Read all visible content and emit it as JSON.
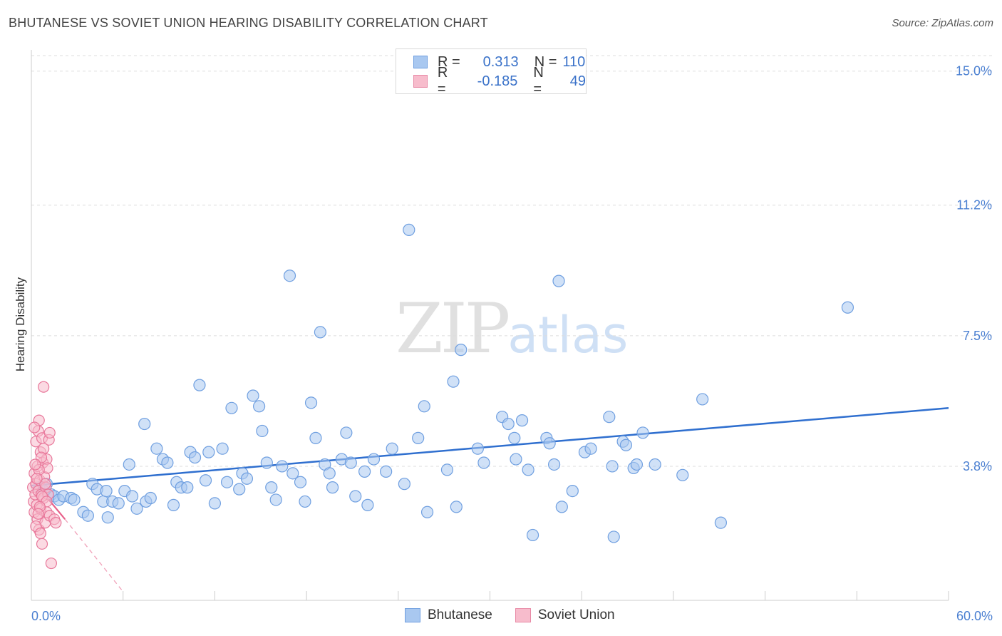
{
  "header": {
    "title": "BHUTANESE VS SOVIET UNION HEARING DISABILITY CORRELATION CHART",
    "source": "Source: ZipAtlas.com"
  },
  "watermark": {
    "zip": "ZIP",
    "atlas": "atlas"
  },
  "legend": {
    "rows": [
      {
        "r_label": "R =",
        "r_value": "0.313",
        "n_label": "N =",
        "n_value": "110",
        "color": "#a9c8f0",
        "border": "#6f9fe0"
      },
      {
        "r_label": "R =",
        "r_value": "-0.185",
        "n_label": "N =",
        "n_value": "49",
        "color": "#f7bccc",
        "border": "#e88aa6"
      }
    ]
  },
  "bottom_legend": [
    {
      "label": "Bhutanese",
      "color": "#a9c8f0",
      "border": "#6f9fe0"
    },
    {
      "label": "Soviet Union",
      "color": "#f7bccc",
      "border": "#e88aa6"
    }
  ],
  "chart_data": {
    "type": "scatter",
    "ylabel": "Hearing Disability",
    "xlim": [
      0,
      60
    ],
    "ylim": [
      0,
      15.6
    ],
    "x_ticks": [
      "0.0%",
      "60.0%"
    ],
    "y_ticks": [
      {
        "value": 3.8,
        "label": "3.8%"
      },
      {
        "value": 7.5,
        "label": "7.5%"
      },
      {
        "value": 11.2,
        "label": "11.2%"
      },
      {
        "value": 15.0,
        "label": "15.0%"
      }
    ],
    "colors": {
      "bhutanese": "#6f9fe0",
      "bhutanese_fill": "#a9c8f0",
      "soviet": "#e8779a",
      "soviet_fill": "#f7bccc",
      "trend_blue": "#2f6fcf",
      "trend_pink": "#e8608a"
    },
    "series": [
      {
        "name": "Bhutanese",
        "points": [
          [
            0.5,
            3.2
          ],
          [
            0.8,
            3.1
          ],
          [
            1.0,
            3.3
          ],
          [
            1.3,
            3.0
          ],
          [
            1.5,
            2.95
          ],
          [
            1.8,
            2.85
          ],
          [
            2.1,
            2.95
          ],
          [
            2.6,
            2.9
          ],
          [
            2.8,
            2.85
          ],
          [
            3.4,
            2.5
          ],
          [
            3.7,
            2.4
          ],
          [
            4.0,
            3.3
          ],
          [
            4.3,
            3.15
          ],
          [
            4.7,
            2.8
          ],
          [
            4.9,
            3.1
          ],
          [
            5.0,
            2.35
          ],
          [
            5.3,
            2.8
          ],
          [
            5.7,
            2.75
          ],
          [
            6.1,
            3.1
          ],
          [
            6.4,
            3.85
          ],
          [
            6.6,
            2.95
          ],
          [
            6.9,
            2.6
          ],
          [
            7.4,
            5.0
          ],
          [
            7.5,
            2.8
          ],
          [
            7.8,
            2.9
          ],
          [
            8.2,
            4.3
          ],
          [
            8.6,
            4.0
          ],
          [
            8.9,
            3.9
          ],
          [
            9.3,
            2.7
          ],
          [
            9.5,
            3.35
          ],
          [
            9.8,
            3.2
          ],
          [
            10.2,
            3.2
          ],
          [
            10.4,
            4.2
          ],
          [
            10.7,
            4.05
          ],
          [
            11.0,
            6.1
          ],
          [
            11.4,
            3.4
          ],
          [
            11.6,
            4.2
          ],
          [
            12.0,
            2.75
          ],
          [
            12.5,
            4.3
          ],
          [
            12.8,
            3.35
          ],
          [
            13.1,
            5.45
          ],
          [
            13.6,
            3.15
          ],
          [
            13.8,
            3.6
          ],
          [
            14.1,
            3.45
          ],
          [
            14.5,
            5.8
          ],
          [
            14.9,
            5.5
          ],
          [
            15.1,
            4.8
          ],
          [
            15.4,
            3.9
          ],
          [
            15.7,
            3.2
          ],
          [
            16.0,
            2.85
          ],
          [
            16.4,
            3.8
          ],
          [
            16.9,
            9.2
          ],
          [
            17.1,
            3.6
          ],
          [
            17.6,
            3.35
          ],
          [
            17.9,
            2.8
          ],
          [
            18.3,
            5.6
          ],
          [
            18.6,
            4.6
          ],
          [
            18.9,
            7.6
          ],
          [
            19.2,
            3.85
          ],
          [
            19.5,
            3.6
          ],
          [
            19.7,
            3.2
          ],
          [
            20.3,
            4.0
          ],
          [
            20.6,
            4.75
          ],
          [
            20.9,
            3.9
          ],
          [
            21.2,
            2.95
          ],
          [
            21.8,
            3.65
          ],
          [
            22.0,
            2.7
          ],
          [
            22.4,
            4.0
          ],
          [
            23.2,
            3.65
          ],
          [
            23.6,
            4.3
          ],
          [
            24.4,
            3.3
          ],
          [
            24.7,
            10.5
          ],
          [
            25.3,
            4.6
          ],
          [
            25.7,
            5.5
          ],
          [
            25.9,
            2.5
          ],
          [
            27.2,
            3.7
          ],
          [
            27.6,
            6.2
          ],
          [
            27.8,
            2.65
          ],
          [
            28.1,
            7.1
          ],
          [
            29.2,
            4.3
          ],
          [
            29.6,
            3.9
          ],
          [
            30.8,
            5.2
          ],
          [
            31.2,
            5.0
          ],
          [
            31.6,
            4.6
          ],
          [
            31.7,
            4.0
          ],
          [
            32.1,
            5.1
          ],
          [
            32.5,
            3.7
          ],
          [
            32.8,
            1.85
          ],
          [
            33.7,
            4.6
          ],
          [
            33.9,
            4.45
          ],
          [
            34.2,
            3.85
          ],
          [
            34.5,
            9.05
          ],
          [
            34.7,
            2.65
          ],
          [
            35.4,
            3.1
          ],
          [
            36.2,
            4.2
          ],
          [
            36.6,
            4.3
          ],
          [
            37.8,
            5.2
          ],
          [
            38.0,
            3.8
          ],
          [
            38.1,
            1.8
          ],
          [
            38.7,
            4.5
          ],
          [
            38.9,
            4.4
          ],
          [
            39.4,
            3.75
          ],
          [
            39.6,
            3.85
          ],
          [
            40.0,
            4.75
          ],
          [
            40.8,
            3.85
          ],
          [
            42.6,
            3.55
          ],
          [
            43.9,
            5.7
          ],
          [
            45.1,
            2.2
          ],
          [
            53.4,
            8.3
          ]
        ]
      },
      {
        "name": "Soviet Union",
        "points": [
          [
            0.1,
            3.2
          ],
          [
            0.15,
            2.8
          ],
          [
            0.2,
            3.6
          ],
          [
            0.2,
            2.5
          ],
          [
            0.25,
            3.0
          ],
          [
            0.3,
            4.5
          ],
          [
            0.3,
            3.3
          ],
          [
            0.35,
            2.7
          ],
          [
            0.4,
            3.8
          ],
          [
            0.4,
            2.3
          ],
          [
            0.45,
            4.8
          ],
          [
            0.45,
            3.1
          ],
          [
            0.5,
            5.1
          ],
          [
            0.5,
            2.0
          ],
          [
            0.55,
            3.4
          ],
          [
            0.6,
            4.2
          ],
          [
            0.6,
            2.6
          ],
          [
            0.65,
            3.0
          ],
          [
            0.7,
            4.6
          ],
          [
            0.7,
            1.6
          ],
          [
            0.75,
            3.9
          ],
          [
            0.8,
            2.9
          ],
          [
            0.8,
            6.05
          ],
          [
            0.85,
            3.5
          ],
          [
            0.9,
            2.2
          ],
          [
            0.95,
            3.2
          ],
          [
            1.0,
            4.0
          ],
          [
            1.0,
            2.5
          ],
          [
            1.05,
            3.75
          ],
          [
            1.1,
            3.0
          ],
          [
            1.15,
            4.55
          ],
          [
            1.2,
            2.4
          ],
          [
            1.2,
            4.75
          ],
          [
            1.3,
            1.05
          ],
          [
            1.5,
            2.3
          ],
          [
            1.6,
            2.2
          ],
          [
            0.2,
            4.9
          ],
          [
            0.3,
            2.1
          ],
          [
            0.5,
            3.7
          ],
          [
            0.6,
            1.9
          ],
          [
            0.7,
            2.95
          ],
          [
            0.8,
            4.3
          ],
          [
            0.9,
            3.3
          ],
          [
            1.0,
            2.8
          ],
          [
            0.35,
            3.45
          ],
          [
            0.55,
            2.65
          ],
          [
            0.65,
            4.05
          ],
          [
            0.45,
            2.45
          ],
          [
            0.25,
            3.85
          ]
        ]
      }
    ],
    "trend_lines": [
      {
        "series": "Bhutanese",
        "x": [
          0,
          60
        ],
        "y": [
          3.25,
          5.45
        ]
      },
      {
        "series": "Soviet Union",
        "x": [
          0,
          2.2
        ],
        "y": [
          3.45,
          2.3
        ],
        "dashed_extension": {
          "x": [
            2.2,
            5.9
          ],
          "y": [
            2.3,
            0.3
          ]
        }
      }
    ]
  }
}
